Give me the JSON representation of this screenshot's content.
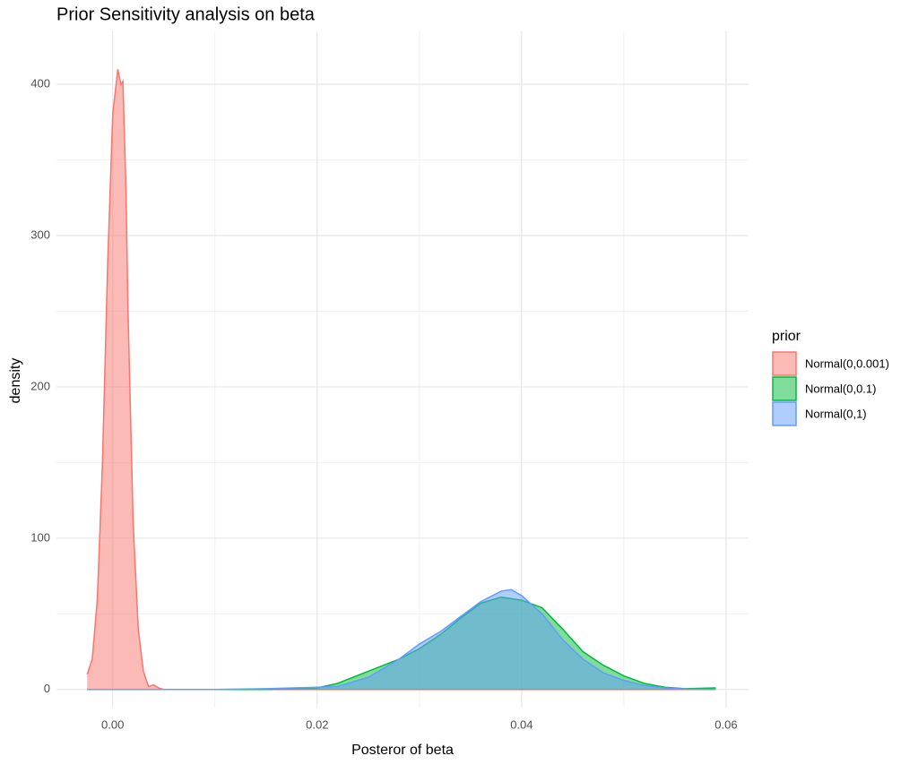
{
  "chart_data": {
    "type": "area",
    "title": "Prior Sensitivity analysis on beta",
    "x_label": "Posteror of beta",
    "y_label": "density",
    "legend_title": "prior",
    "legend_position": "right",
    "grid": true,
    "xlim": [
      -0.0055,
      0.0622
    ],
    "ylim": [
      -12,
      435
    ],
    "xticks": [
      {
        "value": 0,
        "label": "0.00"
      },
      {
        "value": 0.02,
        "label": "0.02"
      },
      {
        "value": 0.04,
        "label": "0.04"
      },
      {
        "value": 0.06,
        "label": "0.06"
      }
    ],
    "yticks": [
      0,
      100,
      200,
      300,
      400
    ],
    "x": [
      -0.0025,
      -0.002,
      -0.0015,
      -0.001,
      -0.0005,
      0,
      0.0005,
      0.0008,
      0.001,
      0.0013,
      0.0015,
      0.002,
      0.0025,
      0.003,
      0.0035,
      0.004,
      0.0045,
      0.005,
      0.01,
      0.015,
      0.02,
      0.022,
      0.025,
      0.028,
      0.03,
      0.032,
      0.034,
      0.036,
      0.038,
      0.039,
      0.04,
      0.042,
      0.044,
      0.046,
      0.048,
      0.05,
      0.052,
      0.054,
      0.056,
      0.059
    ],
    "series": [
      {
        "name": "Normal(0,0.001)",
        "color": "#F8766D",
        "values": [
          10,
          20,
          60,
          150,
          280,
          380,
          410,
          400,
          402,
          330,
          250,
          110,
          40,
          12,
          2,
          3,
          1,
          0,
          0,
          0,
          0,
          0,
          0,
          0,
          0,
          0,
          0,
          0,
          0,
          0,
          0,
          0,
          0,
          0,
          0,
          0,
          0,
          0,
          0,
          0
        ]
      },
      {
        "name": "Normal(0,0.1)",
        "color": "#00BA38",
        "values": [
          0,
          0,
          0,
          0,
          0,
          0,
          0,
          0,
          0,
          0,
          0,
          0,
          0,
          0,
          0,
          0,
          0,
          0,
          0,
          0,
          1,
          4,
          12,
          20,
          27,
          36,
          47,
          57,
          61,
          60,
          59,
          54,
          40,
          25,
          16,
          9,
          4,
          1.5,
          0.5,
          1
        ]
      },
      {
        "name": "Normal(0,1)",
        "color": "#619CFF",
        "values": [
          0,
          0,
          0,
          0,
          0,
          0,
          0,
          0,
          0,
          0,
          0,
          0,
          0,
          0,
          0,
          0,
          0,
          0,
          0,
          0.5,
          1.5,
          2,
          8,
          20,
          30,
          38,
          48,
          58,
          65,
          66,
          62,
          50,
          33,
          20,
          11,
          6,
          2.5,
          1,
          0.3,
          0
        ]
      }
    ]
  }
}
